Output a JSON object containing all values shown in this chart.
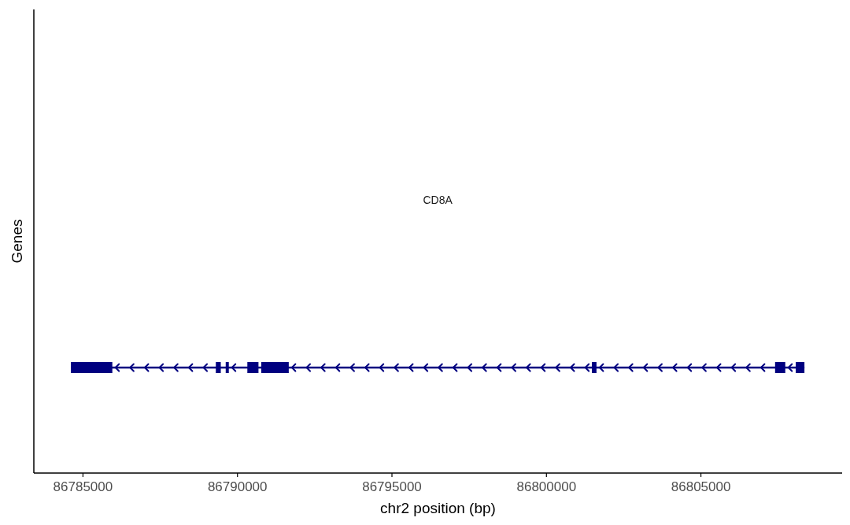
{
  "chart_data": {
    "type": "bar",
    "orientation": "horizontal",
    "xlabel": "chr2 position (bp)",
    "ylabel": "Genes",
    "categories": [
      null
    ],
    "xlim": [
      86783410,
      86809570
    ],
    "xticks": [
      86785000,
      86790000,
      86795000,
      86800000,
      86805000
    ],
    "tick_labels": "x",
    "annotations": [
      "CD8A"
    ],
    "series": [
      {
        "color": "#000080",
        "base": [
          86784610
        ],
        "values": [
          23740
        ]
      },
      {
        "color": "#000080",
        "base": [
          86784610
        ],
        "values": [
          1340
        ]
      },
      {
        "color": "#000080",
        "base": [
          86789300
        ],
        "values": [
          160
        ]
      },
      {
        "color": "#000080",
        "base": [
          86789620
        ],
        "values": [
          100
        ]
      },
      {
        "color": "#000080",
        "base": [
          86790320
        ],
        "values": [
          360
        ]
      },
      {
        "color": "#000080",
        "base": [
          86790770
        ],
        "values": [
          890
        ]
      },
      {
        "color": "#000080",
        "base": [
          86801470
        ],
        "values": [
          150
        ]
      },
      {
        "color": "#000080",
        "base": [
          86807400
        ],
        "values": [
          330
        ]
      },
      {
        "color": "#000080",
        "base": [
          86808070
        ],
        "values": [
          280
        ]
      }
    ]
  }
}
